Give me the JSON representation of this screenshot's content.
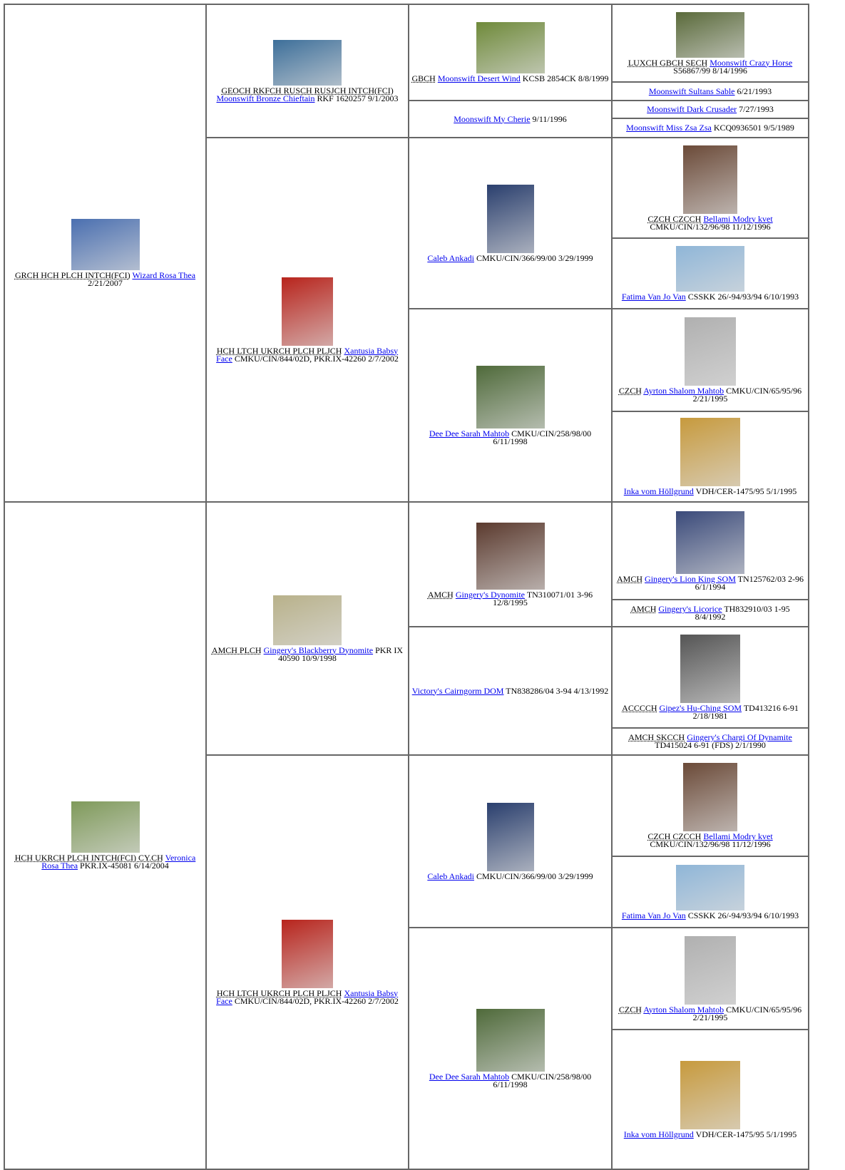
{
  "pedigree": {
    "generations": [
      [
        {
          "titles": "GRCH HCH PLCH INTCH(FCI)",
          "name": "Wizard Rosa Thea",
          "details": "2/21/2007"
        },
        {
          "titles": "HCH UKRCH PLCH INTCH(FCI) CY.CH",
          "name": "Veronica Rosa Thea",
          "details": "PKR.IX-45081 6/14/2004"
        }
      ],
      [
        {
          "titles": "GEOCH RKFCH RUSCH RUSJCH INTCH(FCI)",
          "name": "Moonswift Bronze Chieftain",
          "details": "RKF 1620257 9/1/2003"
        },
        {
          "titles": "HCH LTCH UKRCH PLCH PLJCH",
          "name": "Xantusia Babsy Face",
          "details": "CMKU/CIN/844/02D, PKR.IX-42260 2/7/2002"
        },
        {
          "titles": "AMCH PLCH",
          "name": "Gingery's Blackberry Dynomite",
          "details": "PKR IX 40590 10/9/1998"
        },
        {
          "titles": "HCH LTCH UKRCH PLCH PLJCH",
          "name": "Xantusia Babsy Face",
          "details": "CMKU/CIN/844/02D, PKR.IX-42260 2/7/2002"
        }
      ],
      [
        {
          "titles": "GBCH",
          "name": "Moonswift Desert Wind",
          "details": "KCSB 2854CK 8/8/1999"
        },
        {
          "name": "Moonswift My Cherie",
          "details": "9/11/1996"
        },
        {
          "name": "Caleb Ankadi",
          "details": "CMKU/CIN/366/99/00 3/29/1999"
        },
        {
          "name": "Dee Dee Sarah Mahtob",
          "details": "CMKU/CIN/258/98/00 6/11/1998"
        },
        {
          "titles": "AMCH",
          "name": "Gingery's Dynomite",
          "details": "TN310071/01 3-96 12/8/1995"
        },
        {
          "name": "Victory's Cairngorm DOM",
          "details": "TN838286/04 3-94 4/13/1992"
        },
        {
          "name": "Caleb Ankadi",
          "details": "CMKU/CIN/366/99/00 3/29/1999"
        },
        {
          "name": "Dee Dee Sarah Mahtob",
          "details": "CMKU/CIN/258/98/00 6/11/1998"
        }
      ],
      [
        {
          "titles": "LUXCH GBCH SECH",
          "name": "Moonswift Crazy Horse",
          "details": "S56867/99 8/14/1996"
        },
        {
          "name": "Moonswift Sultans Sable",
          "details": "6/21/1993"
        },
        {
          "name": "Moonswift Dark Crusader",
          "details": "7/27/1993"
        },
        {
          "name": "Moonswift Miss Zsa Zsa",
          "details": "KCQ0936501 9/5/1989"
        },
        {
          "titles": "CZCH CZCCH",
          "name": "Bellami Modry kvet",
          "details": "CMKU/CIN/132/96/98 11/12/1996"
        },
        {
          "name": "Fatima Van Jo Van",
          "details": "CSSKK 26/-94/93/94 6/10/1993"
        },
        {
          "titles": "CZCH",
          "name": "Ayrton Shalom Mahtob",
          "details": "CMKU/CIN/65/95/96 2/21/1995"
        },
        {
          "name": "Inka vom Höllgrund",
          "details": "VDH/CER-1475/95 5/1/1995"
        },
        {
          "titles": "AMCH",
          "name": "Gingery's Lion King SOM",
          "details": "TN125762/03 2-96 6/1/1994"
        },
        {
          "titles": "AMCH",
          "name": "Gingery's Licorice",
          "details": "TH832910/03 1-95 8/4/1992"
        },
        {
          "titles": "ACCCCH",
          "name": "Gipez's Hu-Ching SOM",
          "details": "TD413216 6-91 2/18/1981"
        },
        {
          "titles": "AMCH SKCCH",
          "name": "Gingery's Chargi Of Dynamite",
          "details": "TD415024 6-91 (FDS) 2/1/1990"
        },
        {
          "titles": "CZCH CZCCH",
          "name": "Bellami Modry kvet",
          "details": "CMKU/CIN/132/96/98 11/12/1996"
        },
        {
          "name": "Fatima Van Jo Van",
          "details": "CSSKK 26/-94/93/94 6/10/1993"
        },
        {
          "titles": "CZCH",
          "name": "Ayrton Shalom Mahtob",
          "details": "CMKU/CIN/65/95/96 2/21/1995"
        },
        {
          "name": "Inka vom Höllgrund",
          "details": "VDH/CER-1475/95 5/1/1995"
        }
      ]
    ]
  }
}
